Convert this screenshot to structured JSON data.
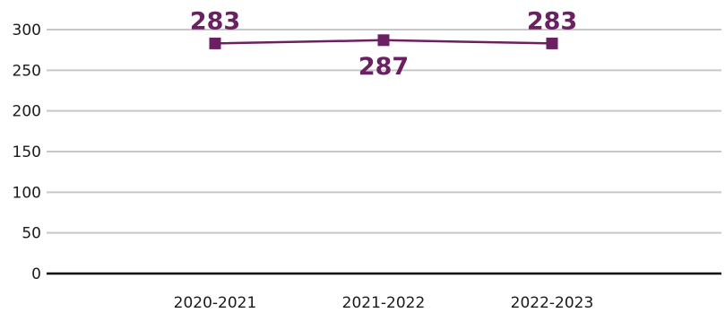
{
  "chart_data": {
    "type": "line",
    "categories": [
      "2020-2021",
      "2021-2022",
      "2022-2023"
    ],
    "series": [
      {
        "values": [
          283,
          287,
          283
        ]
      }
    ],
    "data_labels": [
      "283",
      "287",
      "283"
    ],
    "title": "",
    "xlabel": "",
    "ylabel": "",
    "ylim": [
      0,
      300
    ],
    "yticks": [
      0,
      50,
      100,
      150,
      200,
      250,
      300
    ],
    "ytick_labels": [
      "0",
      "50",
      "100",
      "150",
      "200",
      "250",
      "300"
    ],
    "grid": true,
    "legend": "none",
    "marker": "square",
    "colors": {
      "series": "#6b2062",
      "grid": "#c8c8c8",
      "axis": "#000000"
    }
  }
}
